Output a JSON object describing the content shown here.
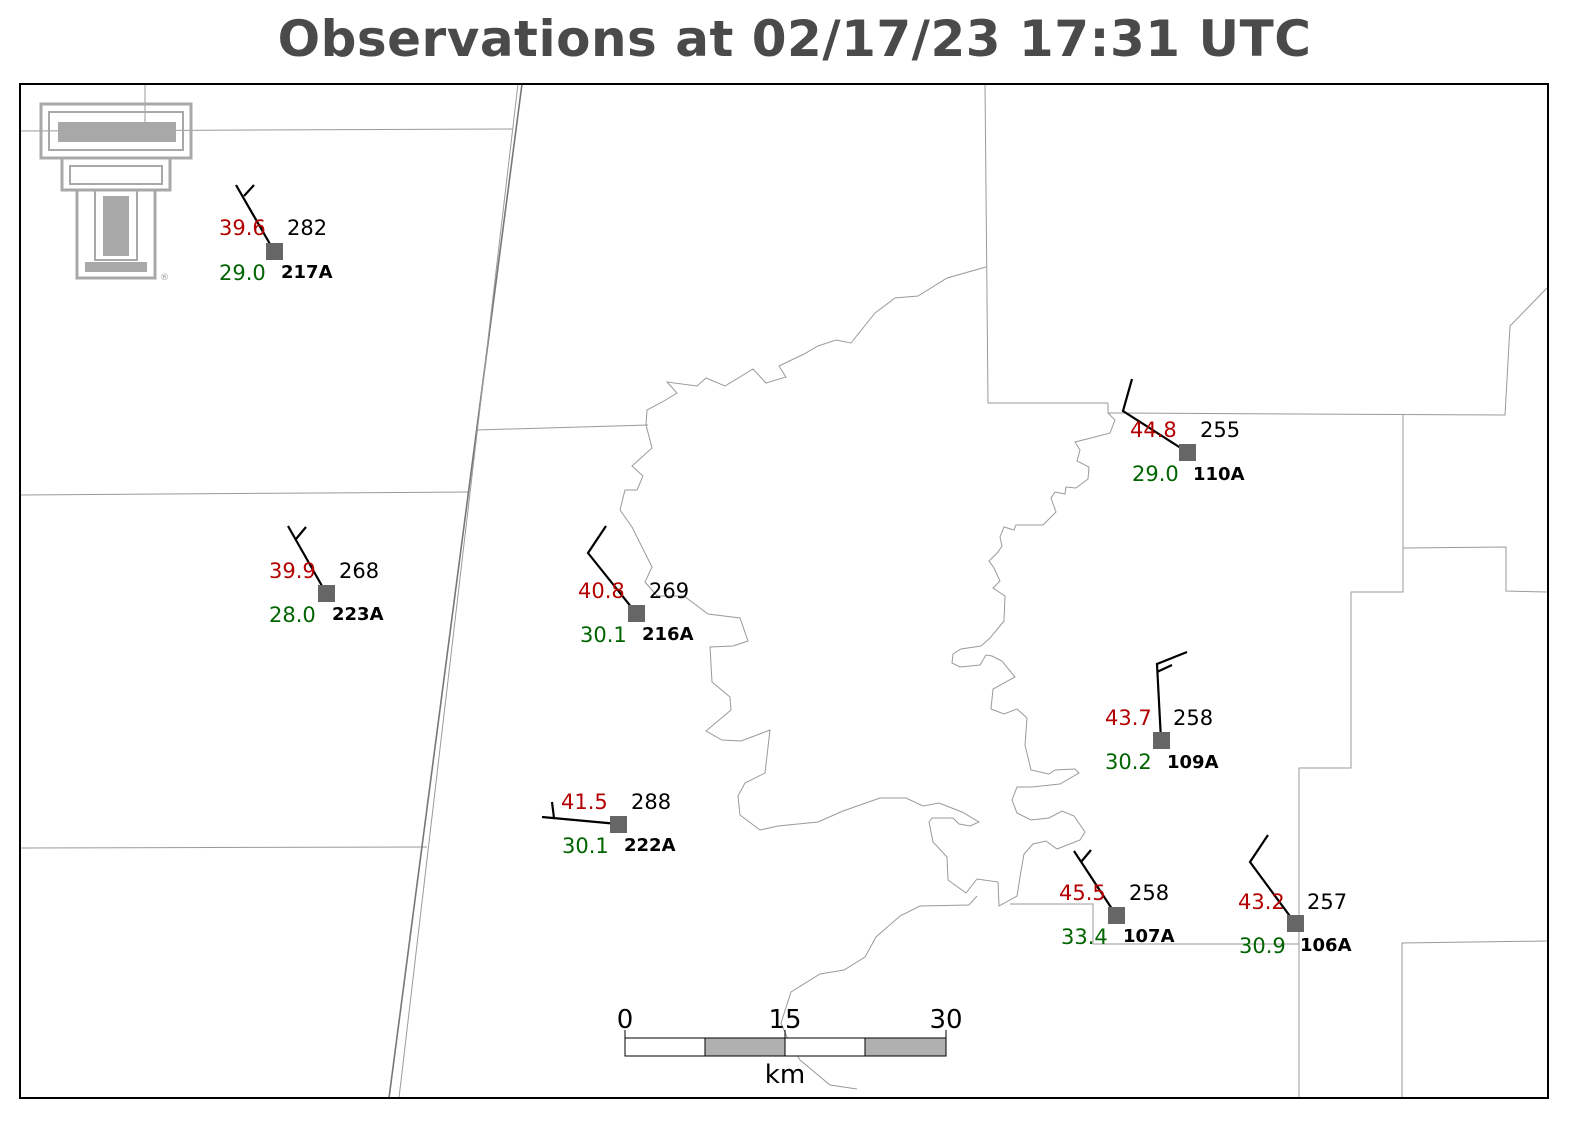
{
  "title": "Observations at 02/17/23 17:31 UTC",
  "colors": {
    "temperature": "#b30000",
    "dewpoint": "#006400",
    "station_marker": "#666666",
    "scale_fill": "#b0b0b0"
  },
  "logo": {
    "icon": "texas-tech-double-t-logo"
  },
  "stations": [
    {
      "id": "217A",
      "temp": "39.6",
      "dew": "29.0",
      "dir": "282"
    },
    {
      "id": "223A",
      "temp": "39.9",
      "dew": "28.0",
      "dir": "268"
    },
    {
      "id": "216A",
      "temp": "40.8",
      "dew": "30.1",
      "dir": "269"
    },
    {
      "id": "222A",
      "temp": "41.5",
      "dew": "30.1",
      "dir": "288"
    },
    {
      "id": "110A",
      "temp": "44.8",
      "dew": "29.0",
      "dir": "255"
    },
    {
      "id": "109A",
      "temp": "43.7",
      "dew": "30.2",
      "dir": "258"
    },
    {
      "id": "107A",
      "temp": "45.5",
      "dew": "33.4",
      "dir": "258"
    },
    {
      "id": "106A",
      "temp": "43.2",
      "dew": "30.9",
      "dir": "257"
    }
  ],
  "scale_bar": {
    "ticks": [
      "0",
      "15",
      "30"
    ],
    "unit": "km"
  }
}
